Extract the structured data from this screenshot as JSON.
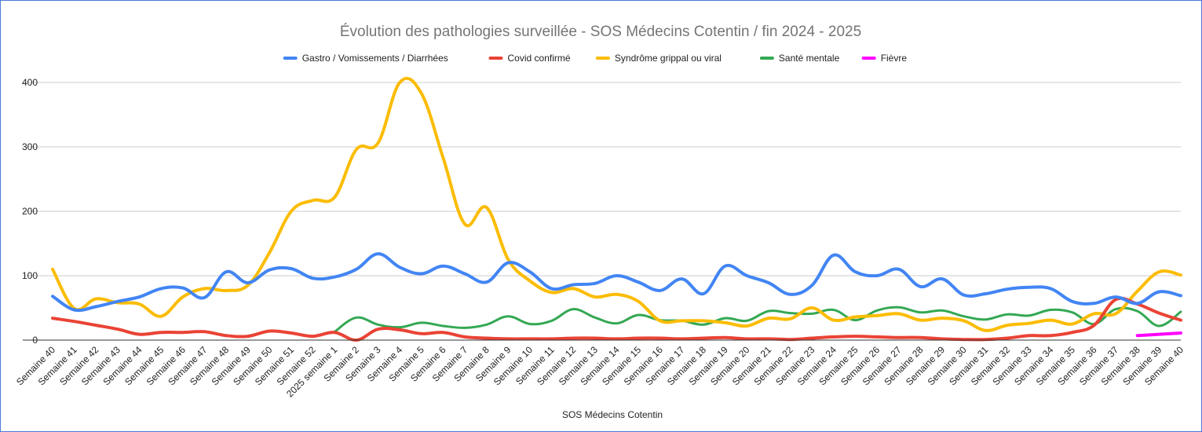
{
  "chart_data": {
    "type": "line",
    "title": "Évolution des pathologies surveillée - SOS Médecins Cotentin / fin 2024 - 2025",
    "xlabel": "SOS Médecins Cotentin",
    "ylabel": "",
    "ylim": [
      0,
      400
    ],
    "yticks": [
      0,
      100,
      200,
      300,
      400
    ],
    "grid": true,
    "legend_position": "top",
    "categories": [
      "Semaine 40",
      "Semaine 41",
      "Semaine 42",
      "Semaine 43",
      "Semaine 44",
      "Semaine 45",
      "Semaine 46",
      "Semaine 47",
      "Semaine 48",
      "Semaine 49",
      "Semaine 50",
      "Semaine 51",
      "Semaine 52",
      "2025 semaine 1",
      "Semaine 2",
      "Semaine 3",
      "Semaine 4",
      "Semaine 5",
      "Semaine 6",
      "Semaine 7",
      "Semaine 8",
      "Semaine 9",
      "Semaine 10",
      "Semaine 11",
      "Semaine 12",
      "Semaine 13",
      "Semaine 14",
      "Semaine 15",
      "Semaine 16",
      "Semaine 17",
      "Semaine 18",
      "Semaine 19",
      "Semaine 20",
      "Semaine 21",
      "Semaine 22",
      "Semaine 23",
      "Semaine 24",
      "Semaine 25",
      "Semaine 26",
      "Semaine 27",
      "Semaine 28",
      "Semaine 29",
      "Semaine 30",
      "Semaine 31",
      "Semaine 32",
      "Semaine 33",
      "Semaine 34",
      "Semaine 35",
      "Semaine 36",
      "Semaine 37",
      "Semaine 38",
      "Semaine 39",
      "Semaine 40"
    ],
    "series": [
      {
        "name": "Gastro / Vomissements / Diarrhées",
        "color": "#4285f4",
        "width": 4,
        "values": [
          68,
          47,
          52,
          60,
          67,
          80,
          81,
          66,
          106,
          89,
          109,
          111,
          96,
          98,
          110,
          134,
          113,
          103,
          115,
          103,
          90,
          120,
          106,
          80,
          86,
          88,
          100,
          90,
          77,
          95,
          72,
          115,
          100,
          89,
          71,
          85,
          132,
          106,
          100,
          110,
          83,
          95,
          70,
          72,
          79,
          82,
          80,
          60,
          57,
          67,
          57,
          75,
          69
        ]
      },
      {
        "name": "Covid confirmé",
        "color": "#ea4335",
        "width": 4,
        "values": [
          34,
          29,
          23,
          17,
          9,
          12,
          12,
          13,
          7,
          6,
          14,
          11,
          6,
          12,
          0,
          17,
          16,
          10,
          12,
          5,
          3,
          2,
          2,
          2,
          3,
          3,
          2,
          3,
          3,
          2,
          3,
          4,
          2,
          2,
          1,
          3,
          5,
          6,
          5,
          4,
          4,
          2,
          1,
          1,
          3,
          7,
          7,
          12,
          23,
          63,
          56,
          42,
          31
        ]
      },
      {
        "name": "Syndrôme grippal ou viral",
        "color": "#fbbc04",
        "width": 4,
        "values": [
          110,
          49,
          64,
          58,
          56,
          37,
          67,
          80,
          77,
          85,
          136,
          200,
          217,
          222,
          296,
          306,
          400,
          383,
          283,
          180,
          206,
          125,
          92,
          74,
          80,
          67,
          71,
          60,
          30,
          30,
          30,
          27,
          22,
          34,
          33,
          50,
          31,
          36,
          38,
          41,
          31,
          34,
          30,
          15,
          23,
          26,
          31,
          25,
          41,
          41,
          76,
          106,
          101
        ]
      },
      {
        "name": "Santé mentale",
        "color": "#34a853",
        "width": 3,
        "values": [
          null,
          null,
          null,
          null,
          null,
          null,
          null,
          null,
          null,
          null,
          null,
          null,
          null,
          13,
          35,
          24,
          20,
          27,
          22,
          19,
          24,
          37,
          25,
          30,
          48,
          35,
          26,
          39,
          31,
          30,
          24,
          34,
          30,
          45,
          42,
          41,
          47,
          31,
          46,
          51,
          43,
          46,
          37,
          32,
          40,
          38,
          47,
          43,
          25,
          48,
          45,
          22,
          44
        ]
      },
      {
        "name": "Fièvre",
        "color": "#ff00ff",
        "width": 4,
        "values": [
          null,
          null,
          null,
          null,
          null,
          null,
          null,
          null,
          null,
          null,
          null,
          null,
          null,
          null,
          null,
          null,
          null,
          null,
          null,
          null,
          null,
          null,
          null,
          null,
          null,
          null,
          null,
          null,
          null,
          null,
          null,
          null,
          null,
          null,
          null,
          null,
          null,
          null,
          null,
          null,
          null,
          null,
          null,
          null,
          null,
          null,
          null,
          null,
          null,
          null,
          7,
          9,
          11
        ]
      }
    ]
  }
}
